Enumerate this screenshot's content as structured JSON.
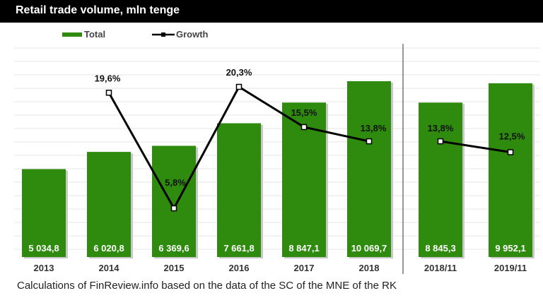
{
  "title": "Retail trade volume, mln tenge",
  "footer": "Calculations of FinReview.info based on the data of the SC of the MNE of the RK",
  "colors": {
    "bar": "#2e8b0e",
    "line": "#000000",
    "grid": "#e4e4e4",
    "title_bg": "#000000"
  },
  "chart_data": {
    "type": "bar",
    "categories": [
      "2013",
      "2014",
      "2015",
      "2016",
      "2017",
      "2018",
      "2018/11",
      "2019/11"
    ],
    "series": [
      {
        "name": "Total",
        "type": "bar",
        "values": [
          5034.8,
          6020.8,
          6369.6,
          7661.8,
          8847.1,
          10069.7,
          8845.3,
          9952.1
        ],
        "labels": [
          "5 034,8",
          "6 020,8",
          "6 369,6",
          "7 661,8",
          "8 847,1",
          "10 069,7",
          "8 845,3",
          "9 952,1"
        ]
      },
      {
        "name": "Growth",
        "type": "line",
        "segments": [
          [
            {
              "category": "2014",
              "value": 19.6,
              "label": "19,6%"
            },
            {
              "category": "2015",
              "value": 5.8,
              "label": "5,8%"
            },
            {
              "category": "2016",
              "value": 20.3,
              "label": "20,3%"
            },
            {
              "category": "2017",
              "value": 15.5,
              "label": "15,5%"
            },
            {
              "category": "2018",
              "value": 13.8,
              "label": "13,8%"
            }
          ],
          [
            {
              "category": "2018/11",
              "value": 13.8,
              "label": "13,8%"
            },
            {
              "category": "2019/11",
              "value": 12.5,
              "label": "12,5%"
            }
          ]
        ]
      }
    ],
    "legend": [
      "Total",
      "Growth"
    ],
    "legend_position": "top-left",
    "grid": true
  }
}
